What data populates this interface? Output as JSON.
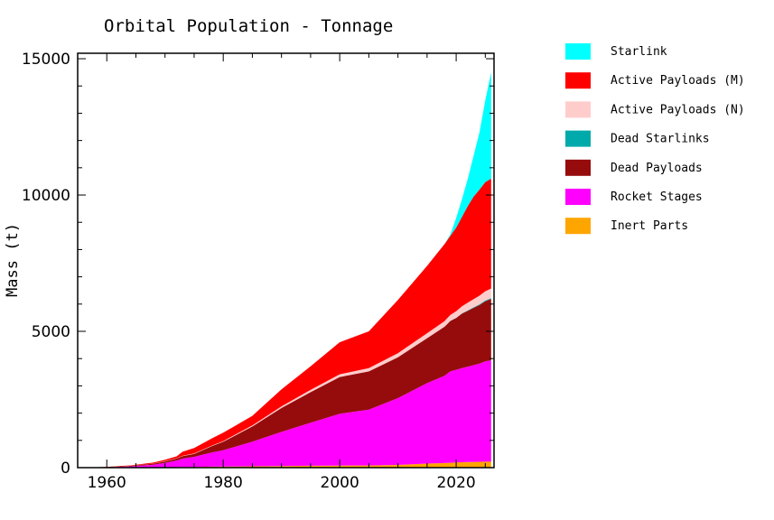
{
  "chart_data": {
    "type": "area",
    "stacked": true,
    "title": "Orbital Population - Tonnage",
    "xlabel": "",
    "ylabel": "Mass (t)",
    "xlim": [
      1955,
      2026.5
    ],
    "ylim": [
      0,
      15200
    ],
    "x_ticks": [
      1960,
      1980,
      2000,
      2020
    ],
    "y_ticks": [
      0,
      5000,
      10000,
      15000
    ],
    "legend_position": "right",
    "x": [
      1957,
      1960,
      1964,
      1968,
      1970,
      1972,
      1973,
      1975,
      1978,
      1980,
      1985,
      1990,
      1995,
      2000,
      2005,
      2010,
      2015,
      2018,
      2019,
      2020,
      2021,
      2022,
      2023,
      2024,
      2025,
      2026
    ],
    "series": [
      {
        "name": "Inert Parts",
        "color": "#ffa500",
        "values": [
          0,
          2,
          5,
          10,
          15,
          20,
          22,
          28,
          35,
          40,
          50,
          60,
          70,
          75,
          80,
          100,
          150,
          170,
          180,
          190,
          200,
          205,
          210,
          215,
          220,
          220
        ]
      },
      {
        "name": "Rocket Stages",
        "color": "#ff00ff",
        "values": [
          2,
          12,
          40,
          95,
          160,
          240,
          310,
          370,
          520,
          600,
          900,
          1250,
          1580,
          1900,
          2050,
          2450,
          2950,
          3200,
          3350,
          3400,
          3450,
          3500,
          3550,
          3600,
          3680,
          3720
        ]
      },
      {
        "name": "Dead Payloads",
        "color": "#960c0c",
        "values": [
          1,
          8,
          20,
          40,
          55,
          75,
          90,
          110,
          230,
          310,
          560,
          880,
          1120,
          1350,
          1400,
          1500,
          1650,
          1800,
          1850,
          1900,
          2000,
          2050,
          2100,
          2150,
          2200,
          2250
        ]
      },
      {
        "name": "Dead Starlinks",
        "color": "#00aaaa",
        "values": [
          0,
          0,
          0,
          0,
          0,
          0,
          0,
          0,
          0,
          0,
          0,
          0,
          0,
          0,
          0,
          0,
          0,
          0,
          0,
          5,
          10,
          15,
          20,
          25,
          30,
          30
        ]
      },
      {
        "name": "Active Payloads (N)",
        "color": "#ffcccc",
        "values": [
          0,
          2,
          3,
          5,
          8,
          10,
          12,
          15,
          20,
          25,
          40,
          60,
          80,
          100,
          120,
          150,
          180,
          200,
          220,
          240,
          260,
          280,
          300,
          320,
          340,
          350
        ]
      },
      {
        "name": "Active Payloads (M)",
        "color": "#ff0000",
        "values": [
          0,
          5,
          15,
          35,
          55,
          70,
          150,
          200,
          260,
          305,
          350,
          620,
          870,
          1175,
          1350,
          1950,
          2470,
          2830,
          2900,
          3070,
          3280,
          3550,
          3760,
          3890,
          4000,
          4030
        ]
      },
      {
        "name": "Starlink",
        "color": "#00ffff",
        "values": [
          0,
          0,
          0,
          0,
          0,
          0,
          0,
          0,
          0,
          0,
          0,
          0,
          0,
          0,
          0,
          0,
          0,
          0,
          50,
          350,
          650,
          1000,
          1500,
          2100,
          3000,
          3900
        ]
      }
    ],
    "legend_order": [
      "Starlink",
      "Active Payloads (M)",
      "Active Payloads (N)",
      "Dead Starlinks",
      "Dead Payloads",
      "Rocket Stages",
      "Inert Parts"
    ]
  }
}
